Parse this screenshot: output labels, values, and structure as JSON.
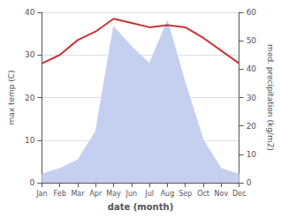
{
  "chart_data": {
    "type": "line",
    "categories": [
      "Jan",
      "Feb",
      "Mar",
      "Apr",
      "May",
      "Jun",
      "Jul",
      "Aug",
      "Sep",
      "Oct",
      "Nov",
      "Dec"
    ],
    "xlabel": "date (month)",
    "ylabel": "max temp (C)",
    "y2label": "med. precipitation (kg/m2)",
    "series": [
      {
        "type": "area",
        "axis": "y2",
        "color": "#c5d0f0",
        "values": [
          3.0,
          5.0,
          8.0,
          18.0,
          55.0,
          48.0,
          42.0,
          57.0,
          35.0,
          15.0,
          5.0,
          3.0
        ]
      },
      {
        "type": "line",
        "color": "#cc3333",
        "values": [
          28.0,
          30.0,
          33.5,
          35.5,
          38.5,
          37.5,
          36.5,
          37.0,
          36.5,
          34.0,
          31.0,
          28.0
        ]
      }
    ],
    "ylim": [
      0,
      40
    ],
    "yticks": [
      0,
      10,
      20,
      30,
      40
    ],
    "y2lim": [
      0,
      60
    ],
    "y2ticks": [
      0,
      10,
      20,
      30,
      40,
      50,
      60
    ],
    "grid": true
  }
}
